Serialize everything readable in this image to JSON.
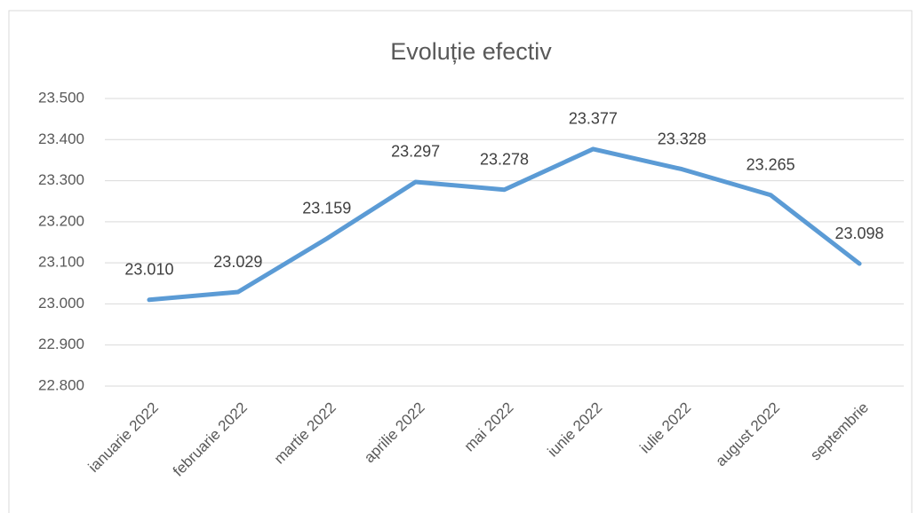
{
  "chart_data": {
    "type": "line",
    "title": "Evoluție efectiv",
    "categories": [
      "ianuarie 2022",
      "februarie 2022",
      "martie 2022",
      "aprilie 2022",
      "mai 2022",
      "iunie 2022",
      "iulie 2022",
      "august 2022",
      "septembrie"
    ],
    "values": [
      23010,
      23029,
      23159,
      23297,
      23278,
      23377,
      23328,
      23265,
      23098
    ],
    "value_labels": [
      "23.010",
      "23.029",
      "23.159",
      "23.297",
      "23.278",
      "23.377",
      "23.328",
      "23.265",
      "23.098"
    ],
    "color": "#5b9bd5",
    "ylim": [
      22800,
      23500
    ],
    "yticks": [
      {
        "value": 22800,
        "label": "22.800"
      },
      {
        "value": 22900,
        "label": "22.900"
      },
      {
        "value": 23000,
        "label": "23.000"
      },
      {
        "value": 23100,
        "label": "23.100"
      },
      {
        "value": 23200,
        "label": "23.200"
      },
      {
        "value": 23300,
        "label": "23.300"
      },
      {
        "value": 23400,
        "label": "23.400"
      },
      {
        "value": 23500,
        "label": "23.500"
      }
    ],
    "grid": true
  }
}
